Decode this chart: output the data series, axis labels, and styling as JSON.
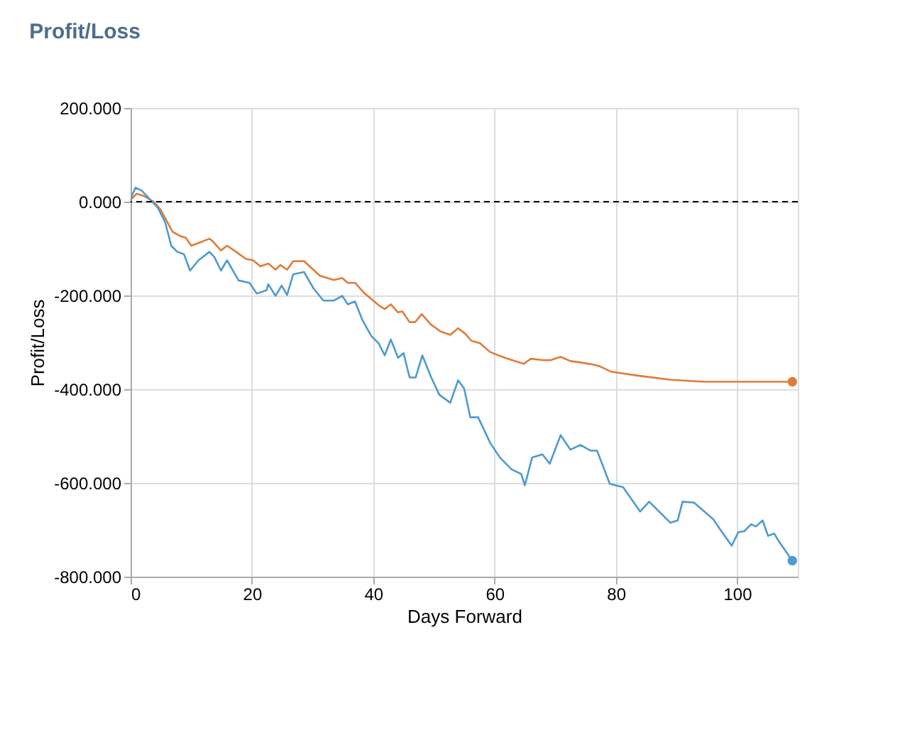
{
  "chart_data": {
    "type": "line",
    "title": "Profit/Loss",
    "xlabel": "Days Forward",
    "ylabel": "Profit/Loss",
    "xlim": [
      0,
      110
    ],
    "xticks": [
      0,
      20,
      40,
      60,
      80,
      100
    ],
    "ylim": [
      -800,
      200
    ],
    "yticks": [
      {
        "value": -800,
        "label": "-800.000"
      },
      {
        "value": -600,
        "label": "-600.000"
      },
      {
        "value": -400,
        "label": "-400.000"
      },
      {
        "value": -200,
        "label": "-200.000"
      },
      {
        "value": 0,
        "label": "0.000"
      },
      {
        "value": 200,
        "label": "200.000"
      }
    ],
    "grid": true,
    "line_style": "solid",
    "ref_lines": [
      {
        "axis": "y",
        "value": 0,
        "color": "#000000",
        "line_style": "dashed"
      }
    ],
    "series": [
      {
        "color": "#e07b39",
        "x": [
          0,
          1,
          2.2,
          3.8,
          4.9,
          6.9,
          8.3,
          9.1,
          10,
          11.4,
          13,
          13.5,
          14.9,
          15.9,
          17.4,
          19,
          20.2,
          21.4,
          22.7,
          23.9,
          24.7,
          25.8,
          26.8,
          28.6,
          31.2,
          33.5,
          34.9,
          35.8,
          37,
          38.6,
          40.9,
          41.9,
          42.9,
          44.1,
          44.8,
          46,
          46.9,
          48,
          49.5,
          51.1,
          52.7,
          54,
          55.2,
          56.2,
          57.6,
          59.3,
          61.7,
          64.8,
          66,
          67.9,
          69.3,
          70.9,
          72.5,
          74.2,
          76.5,
          77.3,
          79.3,
          83.6,
          89,
          94.5,
          109.1
        ],
        "values": [
          4,
          17,
          12,
          0,
          -16,
          -64,
          -74,
          -77,
          -94,
          -87,
          -79,
          -84,
          -104,
          -94,
          -107,
          -122,
          -125,
          -138,
          -132,
          -145,
          -135,
          -145,
          -127,
          -127,
          -158,
          -167,
          -163,
          -173,
          -173,
          -196,
          -221,
          -229,
          -219,
          -236,
          -234,
          -257,
          -257,
          -240,
          -262,
          -277,
          -284,
          -270,
          -282,
          -297,
          -302,
          -321,
          -333,
          -346,
          -335,
          -338,
          -338,
          -331,
          -340,
          -343,
          -348,
          -351,
          -363,
          -371,
          -380,
          -384,
          -384
        ]
      },
      {
        "color": "#4d9bd0",
        "x": [
          0,
          0.8,
          1.8,
          3.4,
          4.5,
          5.7,
          6.7,
          7.7,
          8.8,
          9.8,
          11.2,
          13,
          13.8,
          14.9,
          15.9,
          17.8,
          19.6,
          20.8,
          22.4,
          22.7,
          23.9,
          24.9,
          25.8,
          26.8,
          28.6,
          30.2,
          31.8,
          33.5,
          34.9,
          35.8,
          37,
          38.2,
          39.7,
          40.9,
          41.9,
          42.9,
          44.1,
          45,
          46,
          47,
          48.1,
          49.5,
          50.9,
          52.7,
          54,
          55,
          56,
          57.3,
          59.3,
          60.9,
          62.8,
          64.4,
          65,
          66.2,
          67.9,
          69.1,
          70.9,
          72.5,
          74.2,
          75.8,
          76.9,
          79,
          81.2,
          84,
          85.5,
          89,
          90.2,
          91,
          92.9,
          96.1,
          97.3,
          99.1,
          100.2,
          101.2,
          102.3,
          103.1,
          104.2,
          105.1,
          106.1,
          107,
          109.1
        ],
        "values": [
          7,
          30,
          24,
          2,
          -13,
          -44,
          -94,
          -107,
          -112,
          -147,
          -125,
          -107,
          -118,
          -147,
          -125,
          -168,
          -173,
          -196,
          -189,
          -176,
          -201,
          -179,
          -199,
          -155,
          -150,
          -186,
          -211,
          -211,
          -201,
          -219,
          -213,
          -252,
          -287,
          -302,
          -328,
          -294,
          -333,
          -323,
          -375,
          -375,
          -328,
          -373,
          -412,
          -429,
          -381,
          -399,
          -460,
          -460,
          -515,
          -546,
          -571,
          -581,
          -605,
          -546,
          -539,
          -559,
          -498,
          -529,
          -519,
          -531,
          -531,
          -602,
          -609,
          -661,
          -640,
          -685,
          -680,
          -640,
          -642,
          -678,
          -701,
          -734,
          -705,
          -703,
          -688,
          -693,
          -680,
          -713,
          -708,
          -727,
          -766
        ]
      }
    ]
  }
}
